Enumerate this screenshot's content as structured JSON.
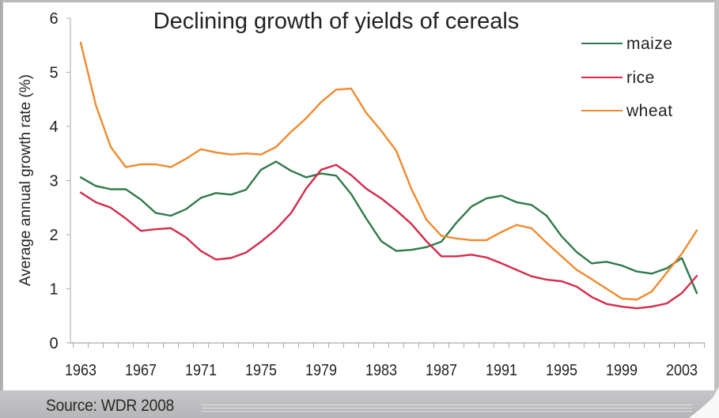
{
  "chart_data": {
    "type": "line",
    "title": "Declining growth of yields of cereals",
    "xlabel": "",
    "ylabel": "Average annual growth rate (%)",
    "ylim": [
      0,
      6
    ],
    "xlim": [
      1962.3,
      2005.3
    ],
    "y_ticks": [
      "0",
      "1",
      "2",
      "3",
      "4",
      "5",
      "6"
    ],
    "x_tick_labels": [
      "1963",
      "1967",
      "1971",
      "1975",
      "1979",
      "1983",
      "1987",
      "1991",
      "1995",
      "1999",
      "2003"
    ],
    "grid": false,
    "legend_position": "top-right",
    "x": [
      1963,
      1964,
      1965,
      1966,
      1967,
      1968,
      1969,
      1970,
      1971,
      1972,
      1973,
      1974,
      1975,
      1976,
      1977,
      1978,
      1979,
      1980,
      1981,
      1982,
      1983,
      1984,
      1985,
      1986,
      1987,
      1988,
      1989,
      1990,
      1991,
      1992,
      1993,
      1994,
      1995,
      1996,
      1997,
      1998,
      1999,
      2000,
      2001,
      2002,
      2003,
      2004
    ],
    "series": [
      {
        "name": "maize",
        "color": "#2f7a4a",
        "values": [
          3.06,
          2.9,
          2.84,
          2.84,
          2.65,
          2.4,
          2.35,
          2.47,
          2.68,
          2.77,
          2.74,
          2.83,
          3.2,
          3.35,
          3.18,
          3.06,
          3.13,
          3.09,
          2.75,
          2.3,
          1.88,
          1.7,
          1.72,
          1.77,
          1.87,
          2.22,
          2.52,
          2.67,
          2.72,
          2.6,
          2.55,
          2.35,
          1.97,
          1.68,
          1.47,
          1.5,
          1.43,
          1.32,
          1.28,
          1.38,
          1.57,
          0.92
        ]
      },
      {
        "name": "rice",
        "color": "#d42b4a",
        "values": [
          2.78,
          2.6,
          2.5,
          2.3,
          2.07,
          2.1,
          2.12,
          1.95,
          1.7,
          1.54,
          1.57,
          1.67,
          1.87,
          2.1,
          2.4,
          2.85,
          3.2,
          3.29,
          3.1,
          2.85,
          2.67,
          2.45,
          2.2,
          1.88,
          1.6,
          1.6,
          1.63,
          1.58,
          1.47,
          1.35,
          1.23,
          1.17,
          1.14,
          1.04,
          0.85,
          0.72,
          0.67,
          0.64,
          0.67,
          0.73,
          0.92,
          1.24
        ]
      },
      {
        "name": "wheat",
        "color": "#f08a2e",
        "values": [
          5.55,
          4.4,
          3.62,
          3.25,
          3.3,
          3.3,
          3.25,
          3.4,
          3.58,
          3.52,
          3.48,
          3.5,
          3.48,
          3.62,
          3.9,
          4.15,
          4.45,
          4.68,
          4.7,
          4.25,
          3.92,
          3.55,
          2.85,
          2.28,
          1.98,
          1.93,
          1.9,
          1.9,
          2.05,
          2.18,
          2.12,
          1.85,
          1.6,
          1.35,
          1.18,
          1.0,
          0.82,
          0.8,
          0.95,
          1.3,
          1.65,
          2.08
        ]
      }
    ]
  },
  "source_note": "Source: WDR 2008"
}
